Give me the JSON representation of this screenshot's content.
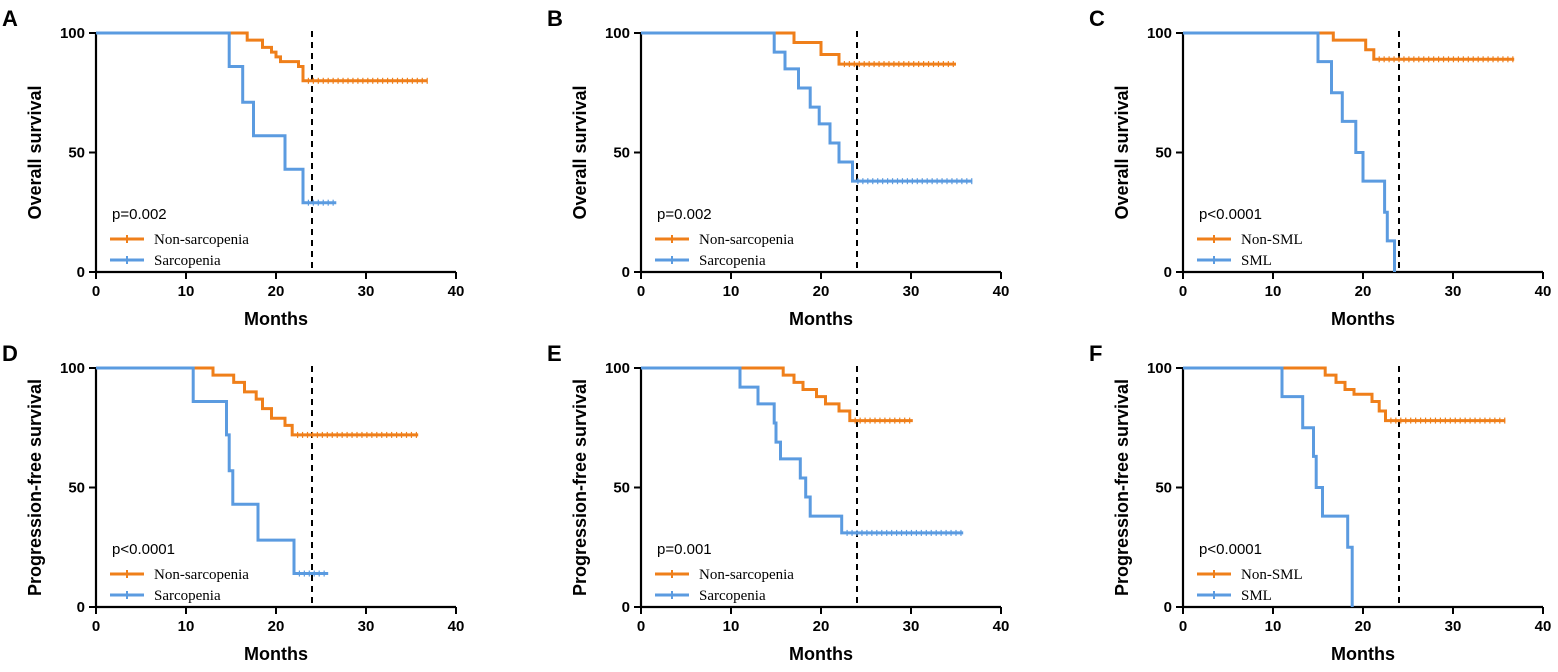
{
  "chart_data": [
    {
      "panel": "A",
      "type": "line",
      "ylabel": "Overall survival",
      "xlabel": "Months",
      "xlim": [
        0,
        40
      ],
      "ylim": [
        0,
        100
      ],
      "xticks": [
        "0",
        "10",
        "20",
        "30",
        "40"
      ],
      "yticks": [
        "0",
        "50",
        "100"
      ],
      "pvalue": "p=0.002",
      "reference_x": 24,
      "series": [
        {
          "name": "Non-sarcopenia",
          "color": "#EF7F1A",
          "steps": [
            [
              0,
              100
            ],
            [
              16.8,
              97
            ],
            [
              18.5,
              94
            ],
            [
              19.5,
              92
            ],
            [
              20,
              90
            ],
            [
              20.5,
              88
            ],
            [
              22.5,
              86
            ],
            [
              23,
              80
            ]
          ],
          "end": 36.8
        },
        {
          "name": "Sarcopenia",
          "color": "#5B9BE0",
          "steps": [
            [
              0,
              100
            ],
            [
              14.8,
              86
            ],
            [
              16.3,
              71
            ],
            [
              17.5,
              57
            ],
            [
              21,
              43
            ],
            [
              23,
              29
            ]
          ],
          "end": 26.7
        }
      ]
    },
    {
      "panel": "B",
      "type": "line",
      "ylabel": "Overall survival",
      "xlabel": "Months",
      "xlim": [
        0,
        40
      ],
      "ylim": [
        0,
        100
      ],
      "xticks": [
        "0",
        "10",
        "20",
        "30",
        "40"
      ],
      "yticks": [
        "0",
        "50",
        "100"
      ],
      "pvalue": "p=0.002",
      "reference_x": 24,
      "series": [
        {
          "name": "Non-sarcopenia",
          "color": "#EF7F1A",
          "steps": [
            [
              0,
              100
            ],
            [
              17,
              96
            ],
            [
              20,
              91
            ],
            [
              22,
              87
            ]
          ],
          "end": 35.0
        },
        {
          "name": "Sarcopenia",
          "color": "#5B9BE0",
          "steps": [
            [
              0,
              100
            ],
            [
              14.8,
              92
            ],
            [
              16,
              85
            ],
            [
              17.5,
              77
            ],
            [
              18.8,
              69
            ],
            [
              19.8,
              62
            ],
            [
              21,
              54
            ],
            [
              22,
              46
            ],
            [
              23.5,
              38
            ]
          ],
          "end": 36.8
        }
      ]
    },
    {
      "panel": "C",
      "type": "line",
      "ylabel": "Overall survival",
      "xlabel": "Months",
      "xlim": [
        0,
        40
      ],
      "ylim": [
        0,
        100
      ],
      "xticks": [
        "0",
        "10",
        "20",
        "30",
        "40"
      ],
      "yticks": [
        "0",
        "50",
        "100"
      ],
      "pvalue": "p<0.0001",
      "reference_x": 24,
      "series": [
        {
          "name": "Non-SML",
          "color": "#EF7F1A",
          "steps": [
            [
              0,
              100
            ],
            [
              16.7,
              97
            ],
            [
              20.3,
              93
            ],
            [
              21.2,
              89
            ]
          ],
          "end": 36.8
        },
        {
          "name": "SML",
          "color": "#5B9BE0",
          "steps": [
            [
              0,
              100
            ],
            [
              15,
              88
            ],
            [
              16.5,
              75
            ],
            [
              17.7,
              63
            ],
            [
              19.2,
              50
            ],
            [
              20,
              38
            ],
            [
              22.4,
              25
            ],
            [
              22.7,
              13
            ],
            [
              23.5,
              0
            ]
          ],
          "end": 23.5
        }
      ]
    },
    {
      "panel": "D",
      "type": "line",
      "ylabel": "Progression-free survival",
      "xlabel": "Months",
      "xlim": [
        0,
        40
      ],
      "ylim": [
        0,
        100
      ],
      "xticks": [
        "0",
        "10",
        "20",
        "30",
        "40"
      ],
      "yticks": [
        "0",
        "50",
        "100"
      ],
      "pvalue": "p<0.0001",
      "reference_x": 24,
      "series": [
        {
          "name": "Non-sarcopenia",
          "color": "#EF7F1A",
          "steps": [
            [
              0,
              100
            ],
            [
              13,
              97
            ],
            [
              15.3,
              94
            ],
            [
              16.5,
              90
            ],
            [
              17.8,
              87
            ],
            [
              18.5,
              83
            ],
            [
              19.5,
              79
            ],
            [
              21,
              76
            ],
            [
              21.8,
              72
            ]
          ],
          "end": 35.8
        },
        {
          "name": "Sarcopenia",
          "color": "#5B9BE0",
          "steps": [
            [
              0,
              100
            ],
            [
              10.8,
              86
            ],
            [
              14.5,
              72
            ],
            [
              14.8,
              57
            ],
            [
              15.2,
              43
            ],
            [
              18,
              28
            ],
            [
              22,
              14
            ]
          ],
          "end": 25.8
        }
      ]
    },
    {
      "panel": "E",
      "type": "line",
      "ylabel": "Progression-free survival",
      "xlabel": "Months",
      "xlim": [
        0,
        40
      ],
      "ylim": [
        0,
        100
      ],
      "xticks": [
        "0",
        "10",
        "20",
        "30",
        "40"
      ],
      "yticks": [
        "0",
        "50",
        "100"
      ],
      "pvalue": "p=0.001",
      "reference_x": 24,
      "series": [
        {
          "name": "Non-sarcopenia",
          "color": "#EF7F1A",
          "steps": [
            [
              0,
              100
            ],
            [
              15.8,
              97
            ],
            [
              17,
              94
            ],
            [
              18,
              91
            ],
            [
              19.5,
              88
            ],
            [
              20.5,
              85
            ],
            [
              22,
              82
            ],
            [
              23.2,
              78
            ]
          ],
          "end": 30.2
        },
        {
          "name": "Sarcopenia",
          "color": "#5B9BE0",
          "steps": [
            [
              0,
              100
            ],
            [
              11,
              92
            ],
            [
              13,
              85
            ],
            [
              14.8,
              77
            ],
            [
              15,
              69
            ],
            [
              15.5,
              62
            ],
            [
              17.7,
              54
            ],
            [
              18.3,
              46
            ],
            [
              18.8,
              38
            ],
            [
              22.3,
              31
            ]
          ],
          "end": 35.8
        }
      ]
    },
    {
      "panel": "F",
      "type": "line",
      "ylabel": "Progression-free survival",
      "xlabel": "Months",
      "xlim": [
        0,
        40
      ],
      "ylim": [
        0,
        100
      ],
      "xticks": [
        "0",
        "10",
        "20",
        "30",
        "40"
      ],
      "yticks": [
        "0",
        "50",
        "100"
      ],
      "pvalue": "p<0.0001",
      "reference_x": 24,
      "series": [
        {
          "name": "Non-SML",
          "color": "#EF7F1A",
          "steps": [
            [
              0,
              100
            ],
            [
              15.8,
              97
            ],
            [
              17,
              94
            ],
            [
              18,
              91
            ],
            [
              19,
              89
            ],
            [
              21,
              86
            ],
            [
              21.8,
              82
            ],
            [
              22.5,
              78
            ]
          ],
          "end": 35.8
        },
        {
          "name": "SML",
          "color": "#5B9BE0",
          "steps": [
            [
              0,
              100
            ],
            [
              11,
              88
            ],
            [
              13.3,
              75
            ],
            [
              14.5,
              63
            ],
            [
              14.8,
              50
            ],
            [
              15.5,
              38
            ],
            [
              18.3,
              25
            ],
            [
              18.8,
              0
            ]
          ],
          "end": 18.8
        }
      ]
    }
  ]
}
